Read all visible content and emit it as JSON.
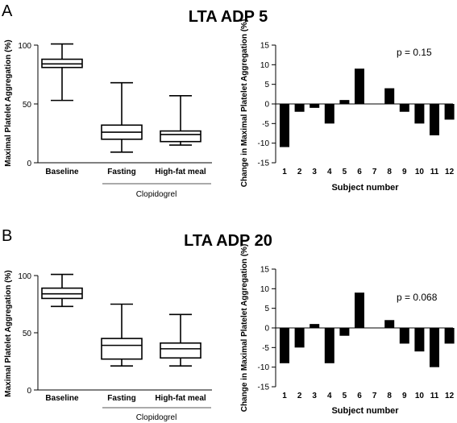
{
  "chart_data": [
    {
      "panel": "A",
      "title": "LTA ADP 5",
      "type": "box",
      "ylabel": "Maximal Platelet Aggregation (%)",
      "ylim": [
        0,
        100
      ],
      "yticks": [
        0,
        50,
        100
      ],
      "categories": [
        "Baseline",
        "Fasting",
        "High-fat meal"
      ],
      "group_label": "Clopidogrel",
      "boxes": [
        {
          "min": 53,
          "q1": 81,
          "median": 84,
          "q3": 88,
          "max": 101
        },
        {
          "min": 9,
          "q1": 20,
          "median": 26,
          "q3": 32,
          "max": 68
        },
        {
          "min": 15,
          "q1": 18,
          "median": 24,
          "q3": 27,
          "max": 57
        }
      ]
    },
    {
      "panel": "A",
      "type": "bar",
      "ylabel": "Change in Maximal Platelet Aggregation (%)",
      "xlabel": "Subject number",
      "ylim": [
        -15,
        15
      ],
      "yticks": [
        -15,
        -10,
        -5,
        0,
        5,
        10,
        15
      ],
      "categories": [
        "1",
        "2",
        "3",
        "4",
        "5",
        "6",
        "7",
        "8",
        "9",
        "10",
        "11",
        "12"
      ],
      "values": [
        -11,
        -2,
        -1,
        -5,
        1,
        9,
        0,
        4,
        -2,
        -5,
        -8,
        -4
      ],
      "annotation": "p = 0.15"
    },
    {
      "panel": "B",
      "title": "LTA ADP 20",
      "type": "box",
      "ylabel": "Maximal Platelet Aggregation (%)",
      "ylim": [
        0,
        100
      ],
      "yticks": [
        0,
        50,
        100
      ],
      "categories": [
        "Baseline",
        "Fasting",
        "High-fat meal"
      ],
      "group_label": "Clopidogrel",
      "boxes": [
        {
          "min": 73,
          "q1": 80,
          "median": 84,
          "q3": 89,
          "max": 101
        },
        {
          "min": 21,
          "q1": 27,
          "median": 39,
          "q3": 45,
          "max": 75
        },
        {
          "min": 21,
          "q1": 28,
          "median": 36,
          "q3": 41,
          "max": 66
        }
      ]
    },
    {
      "panel": "B",
      "type": "bar",
      "ylabel": "Change in Maximal Platelet Aggregation (%)",
      "xlabel": "Subject number",
      "ylim": [
        -15,
        15
      ],
      "yticks": [
        -15,
        -10,
        -5,
        0,
        5,
        10,
        15
      ],
      "categories": [
        "1",
        "2",
        "3",
        "4",
        "5",
        "6",
        "7",
        "8",
        "9",
        "10",
        "11",
        "12"
      ],
      "values": [
        -9,
        -5,
        1,
        -9,
        -2,
        9,
        0,
        2,
        -4,
        -6,
        -10,
        -4
      ],
      "annotation": "p = 0.068"
    }
  ]
}
